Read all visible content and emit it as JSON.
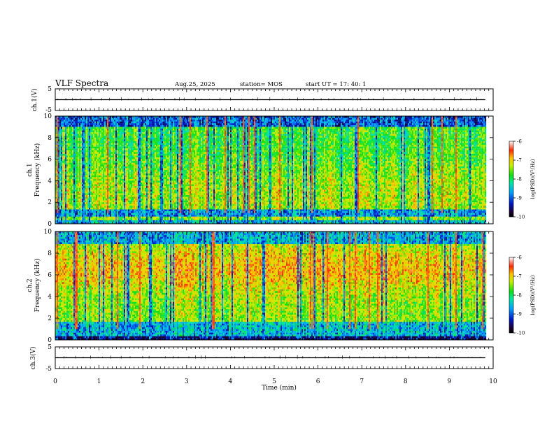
{
  "header": {
    "title": "VLF Spectra",
    "date": "Aug.25, 2025",
    "station": "station= MOS",
    "start": "start  UT  =   17: 40: 1"
  },
  "colors": {
    "colormap": [
      "#1c0030",
      "#0018c8",
      "#00a0ff",
      "#00e8a0",
      "#10e010",
      "#c8f000",
      "#ffc000",
      "#ff2800",
      "#ffffff"
    ]
  },
  "chart_data": [
    {
      "type": "line",
      "ylabel": "ch.1(V)",
      "ylim": [
        -5,
        5
      ],
      "yticks": [
        "5",
        "-5"
      ],
      "series": [
        {
          "name": "ch.1 waveform",
          "approx_value": 0
        }
      ]
    },
    {
      "type": "heatmap",
      "ylabel_top": "ch.1",
      "ylabel": "Frequency (kHz)",
      "ylim": [
        0,
        10
      ],
      "yticks": [
        "0",
        "2",
        "4",
        "6",
        "8",
        "10"
      ],
      "colorbar": {
        "label": "log(PSD)(V²/Hz)",
        "range": [
          -10,
          -6
        ],
        "ticks": [
          "-6",
          "-7",
          "-8",
          "-9",
          "-10"
        ]
      }
    },
    {
      "type": "heatmap",
      "ylabel_top": "ch.2",
      "ylabel": "Frequency (kHz)",
      "ylim": [
        0,
        10
      ],
      "yticks": [
        "0",
        "2",
        "4",
        "6",
        "8",
        "10"
      ],
      "colorbar": {
        "label": "log(PSD)(V²/Hz)",
        "range": [
          -10,
          -6
        ],
        "ticks": [
          "-6",
          "-7",
          "-8",
          "-9",
          "-10"
        ]
      }
    },
    {
      "type": "line",
      "ylabel": "ch.3(V)",
      "ylim": [
        -5,
        5
      ],
      "yticks": [
        "5",
        "-5"
      ],
      "series": [
        {
          "name": "ch.3 waveform",
          "approx_value": 0
        }
      ]
    }
  ],
  "xaxis": {
    "label": "Time (min)",
    "xlim": [
      0,
      10
    ],
    "ticks": [
      "0",
      "1",
      "2",
      "3",
      "4",
      "5",
      "6",
      "7",
      "8",
      "9",
      "10"
    ],
    "data_end": 9.82
  }
}
